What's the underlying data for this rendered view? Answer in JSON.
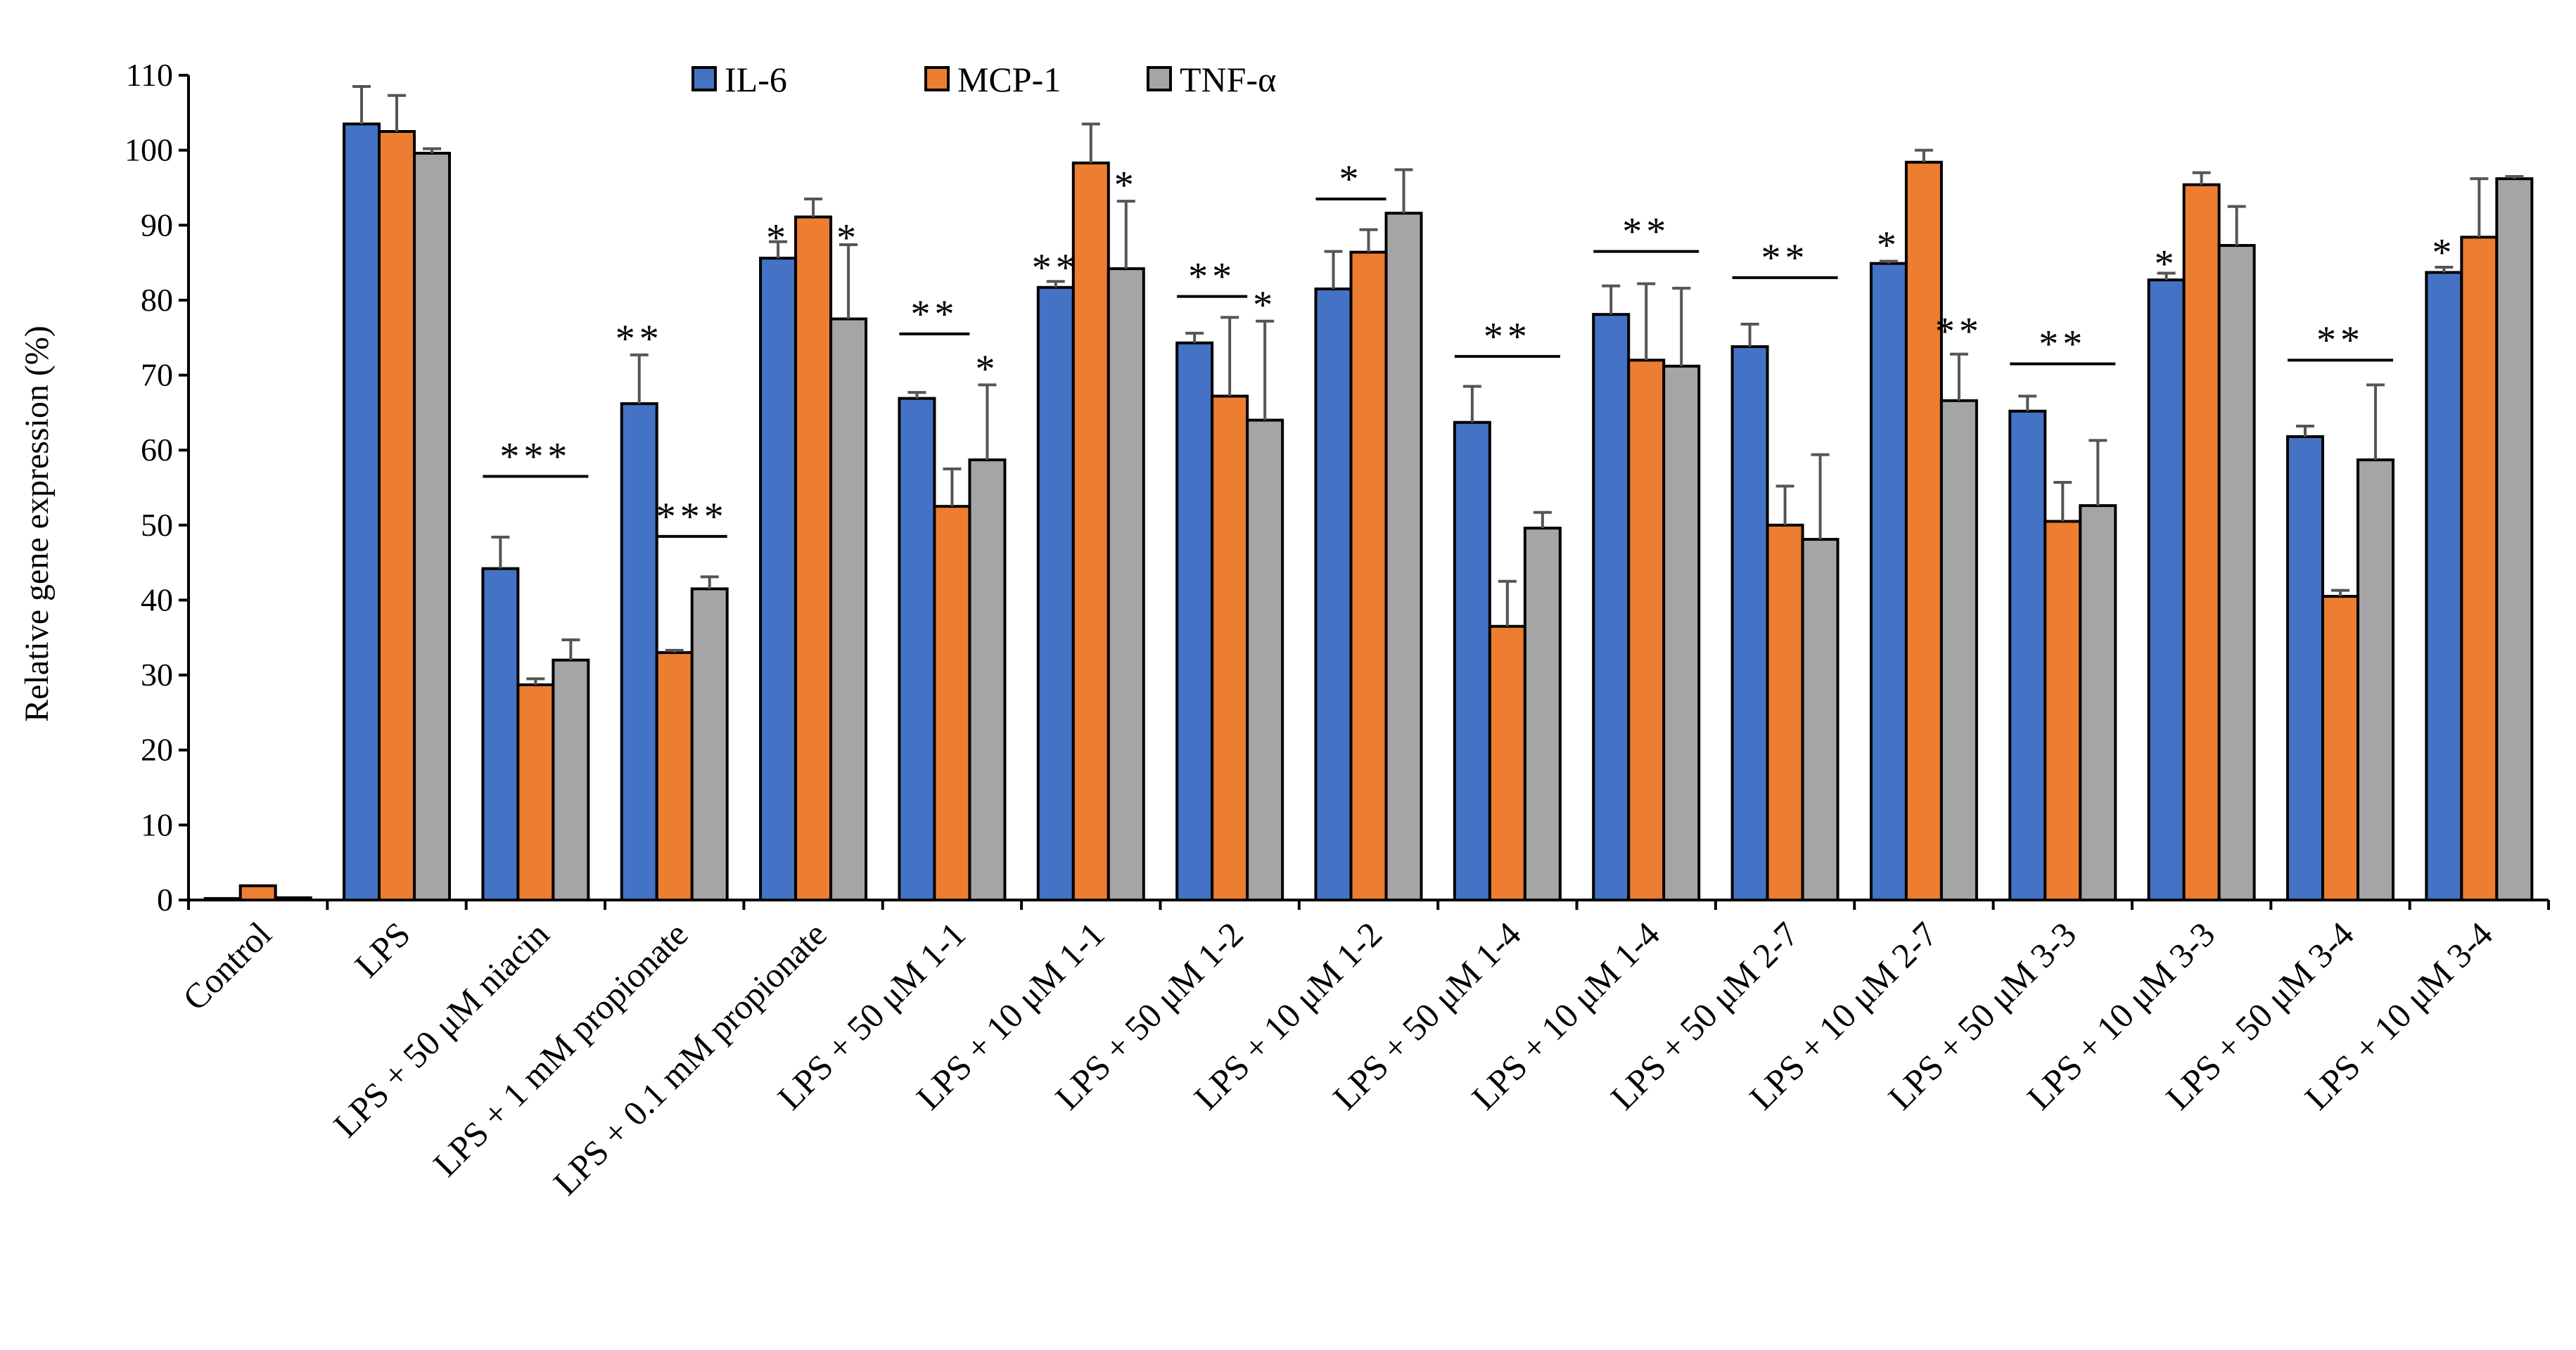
{
  "chart_data": {
    "type": "bar",
    "title": "",
    "xlabel": "",
    "ylabel": "Relative gene expression (%)",
    "ylim": [
      0,
      110
    ],
    "yticks": [
      0,
      10,
      20,
      30,
      40,
      50,
      60,
      70,
      80,
      90,
      100,
      110
    ],
    "grid": false,
    "legend_position": "top-center",
    "categories": [
      "Control",
      "LPS",
      "LPS + 50 μM niacin",
      "LPS + 1 mM propionate",
      "LPS + 0.1 mM propionate",
      "LPS +  50 μM 1-1",
      "LPS +  10 μM 1-1",
      "LPS +  50 μM 1-2",
      "LPS +  10 μM 1-2",
      "LPS +  50 μM 1-4",
      "LPS +  10 μM 1-4",
      "LPS +  50 μM 2-7",
      "LPS +  10 μM 2-7",
      "LPS +  50 μM 3-3",
      "LPS +  10 μM 3-3",
      "LPS +  50 μM 3-4",
      "LPS +  10 μM 3-4"
    ],
    "series": [
      {
        "name": "IL-6",
        "color": "#4472C4",
        "values": [
          0.2,
          103.5,
          44.2,
          66.2,
          85.6,
          66.9,
          81.7,
          74.3,
          81.5,
          63.7,
          78.1,
          73.8,
          84.9,
          65.2,
          82.7,
          61.8,
          83.7
        ],
        "errors": [
          0,
          5,
          4.2,
          6.5,
          2.2,
          0.8,
          0.8,
          1.3,
          5,
          4.8,
          3.8,
          3,
          0.3,
          2,
          0.9,
          1.4,
          0.7
        ]
      },
      {
        "name": "MCP-1",
        "color": "#ED7D31",
        "values": [
          1.9,
          102.5,
          28.7,
          33,
          91.1,
          52.5,
          98.3,
          67.2,
          86.4,
          36.5,
          72,
          50,
          98.4,
          50.5,
          95.4,
          40.5,
          88.4
        ],
        "errors": [
          0,
          4.8,
          0.8,
          0.3,
          2.4,
          5,
          5.2,
          10.5,
          3,
          6,
          10.2,
          5.2,
          1.6,
          5.2,
          1.6,
          0.8,
          7.8
        ]
      },
      {
        "name": "TNF-α",
        "color": "#A5A5A5",
        "values": [
          0.3,
          99.6,
          32,
          41.5,
          77.5,
          58.7,
          84.2,
          64,
          91.6,
          49.6,
          71.2,
          48.1,
          66.6,
          52.6,
          87.3,
          58.7,
          96.2
        ],
        "errors": [
          0,
          0.6,
          2.7,
          1.6,
          9.9,
          10,
          9,
          13.2,
          5.8,
          2.1,
          10.4,
          11.3,
          6.2,
          8.7,
          5.2,
          10,
          0.3
        ]
      }
    ],
    "annotations": [
      {
        "text": "***",
        "category": 2,
        "bar": "group",
        "line": true,
        "y": 56.5
      },
      {
        "text": "**",
        "category": 3,
        "bar": 0,
        "line": false,
        "y": 75
      },
      {
        "text": "***",
        "category": 3,
        "bar": "right",
        "line": true,
        "y": 48.5
      },
      {
        "text": "*",
        "category": 4,
        "bar": 0,
        "line": false,
        "y": 88.5
      },
      {
        "text": "*",
        "category": 4,
        "bar": 2,
        "line": false,
        "y": 88.5
      },
      {
        "text": "**",
        "category": 5,
        "bar": "left",
        "line": true,
        "y": 75.5
      },
      {
        "text": "*",
        "category": 5,
        "bar": 2,
        "line": false,
        "y": 71
      },
      {
        "text": "**",
        "category": 6,
        "bar": 0,
        "line": false,
        "y": 84.5
      },
      {
        "text": "*",
        "category": 6,
        "bar": 2,
        "line": false,
        "y": 95.5
      },
      {
        "text": "**",
        "category": 7,
        "bar": "left",
        "line": true,
        "y": 80.5
      },
      {
        "text": "*",
        "category": 7,
        "bar": 2,
        "line": false,
        "y": 79.5
      },
      {
        "text": "*",
        "category": 8,
        "bar": "left",
        "line": true,
        "y": 93.5
      },
      {
        "text": "**",
        "category": 9,
        "bar": "group",
        "line": true,
        "y": 72.5
      },
      {
        "text": "**",
        "category": 10,
        "bar": "group",
        "line": true,
        "y": 86.5
      },
      {
        "text": "**",
        "category": 11,
        "bar": "group",
        "line": true,
        "y": 83
      },
      {
        "text": "*",
        "category": 12,
        "bar": 0,
        "line": false,
        "y": 87.5
      },
      {
        "text": "**",
        "category": 12,
        "bar": 2,
        "line": false,
        "y": 76
      },
      {
        "text": "**",
        "category": 13,
        "bar": "group",
        "line": true,
        "y": 71.5
      },
      {
        "text": "*",
        "category": 14,
        "bar": 0,
        "line": false,
        "y": 85
      },
      {
        "text": "**",
        "category": 15,
        "bar": "group",
        "line": true,
        "y": 72
      },
      {
        "text": "*",
        "category": 16,
        "bar": 0,
        "line": false,
        "y": 86.5
      }
    ]
  }
}
